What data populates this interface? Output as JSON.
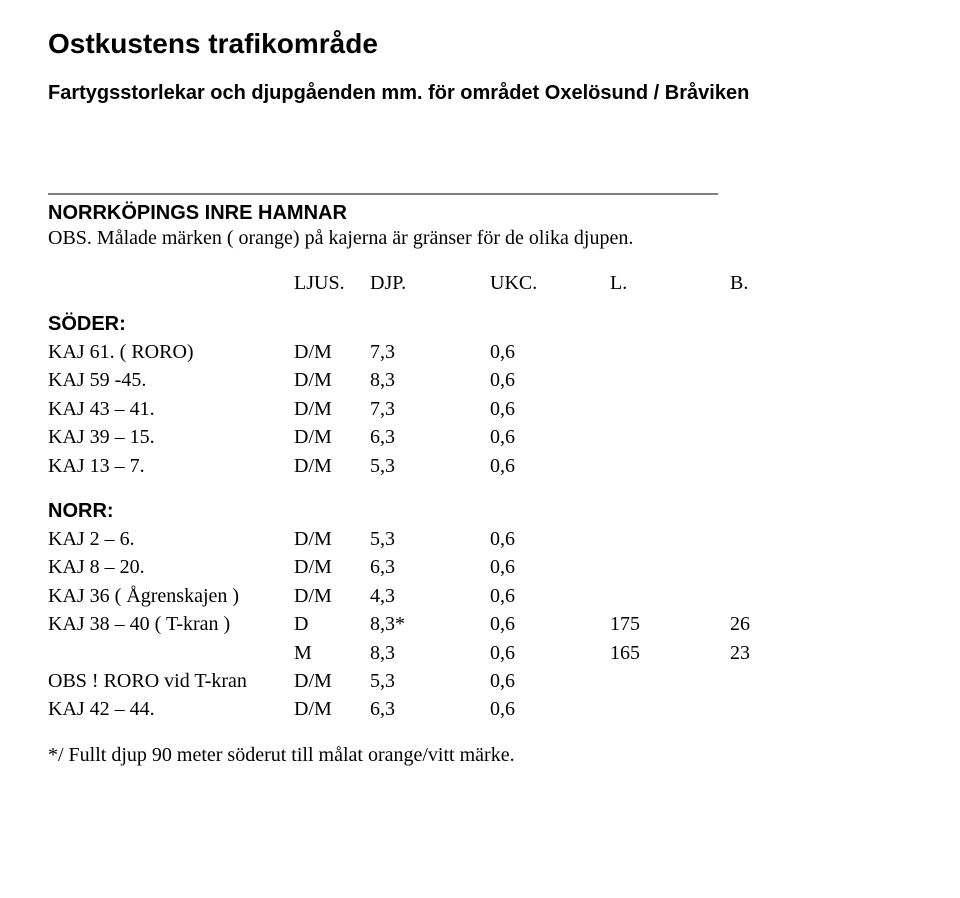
{
  "title": "Ostkustens trafikområde",
  "subtitle": "Fartygsstorlekar och djupgåenden mm. för området Oxelösund / Bråviken",
  "divider": "___________________________________________________________________",
  "section_heading": "NORRKÖPINGS INRE HAMNAR",
  "section_note": "OBS. Målade märken ( orange) på kajerna är gränser för de olika djupen.",
  "headers": {
    "c0": "",
    "c1": "",
    "c2": "LJUS.",
    "c3": "DJP.",
    "c4": "UKC.",
    "c5": "L.",
    "c6": "B."
  },
  "group1_label": "SÖDER:",
  "group1_rows": [
    {
      "c0": "KAJ 61. ( RORO)",
      "c1": "D/M",
      "c2": "7,3",
      "c3": "0,6",
      "c4": "",
      "c5": ""
    },
    {
      "c0": "KAJ 59 -45.",
      "c1": "D/M",
      "c2": "8,3",
      "c3": "0,6",
      "c4": "",
      "c5": ""
    },
    {
      "c0": "KAJ 43 – 41.",
      "c1": "D/M",
      "c2": "7,3",
      "c3": "0,6",
      "c4": "",
      "c5": ""
    },
    {
      "c0": "KAJ 39 – 15.",
      "c1": "D/M",
      "c2": "6,3",
      "c3": "0,6",
      "c4": "",
      "c5": ""
    },
    {
      "c0": "KAJ 13 – 7.",
      "c1": "D/M",
      "c2": "5,3",
      "c3": "0,6",
      "c4": "",
      "c5": ""
    }
  ],
  "group2_label": "NORR:",
  "group2_rows": [
    {
      "c0": "KAJ 2 – 6.",
      "c1": "D/M",
      "c2": "5,3",
      "c3": "0,6",
      "c4": "",
      "c5": ""
    },
    {
      "c0": "KAJ 8 – 20.",
      "c1": "D/M",
      "c2": "6,3",
      "c3": "0,6",
      "c4": "",
      "c5": ""
    },
    {
      "c0": "KAJ 36 ( Ågrenskajen )",
      "c1": "D/M",
      "c2": "4,3",
      "c3": "0,6",
      "c4": "",
      "c5": ""
    },
    {
      "c0": "KAJ 38 – 40 ( T-kran )",
      "c1": "D",
      "c2": "8,3*",
      "c3": "0,6",
      "c4": "175",
      "c5": "26"
    },
    {
      "c0": "",
      "c1": "M",
      "c2": "8,3",
      "c3": "0,6",
      "c4": "165",
      "c5": "23"
    },
    {
      "c0": "OBS ! RORO vid T-kran",
      "c1": "D/M",
      "c2": "5,3",
      "c3": "0,6",
      "c4": "",
      "c5": ""
    },
    {
      "c0": "KAJ 42 – 44.",
      "c1": "D/M",
      "c2": "6,3",
      "c3": "0,6",
      "c4": "",
      "c5": ""
    }
  ],
  "footnote": "*/ Fullt djup 90 meter söderut till målat orange/vitt märke."
}
